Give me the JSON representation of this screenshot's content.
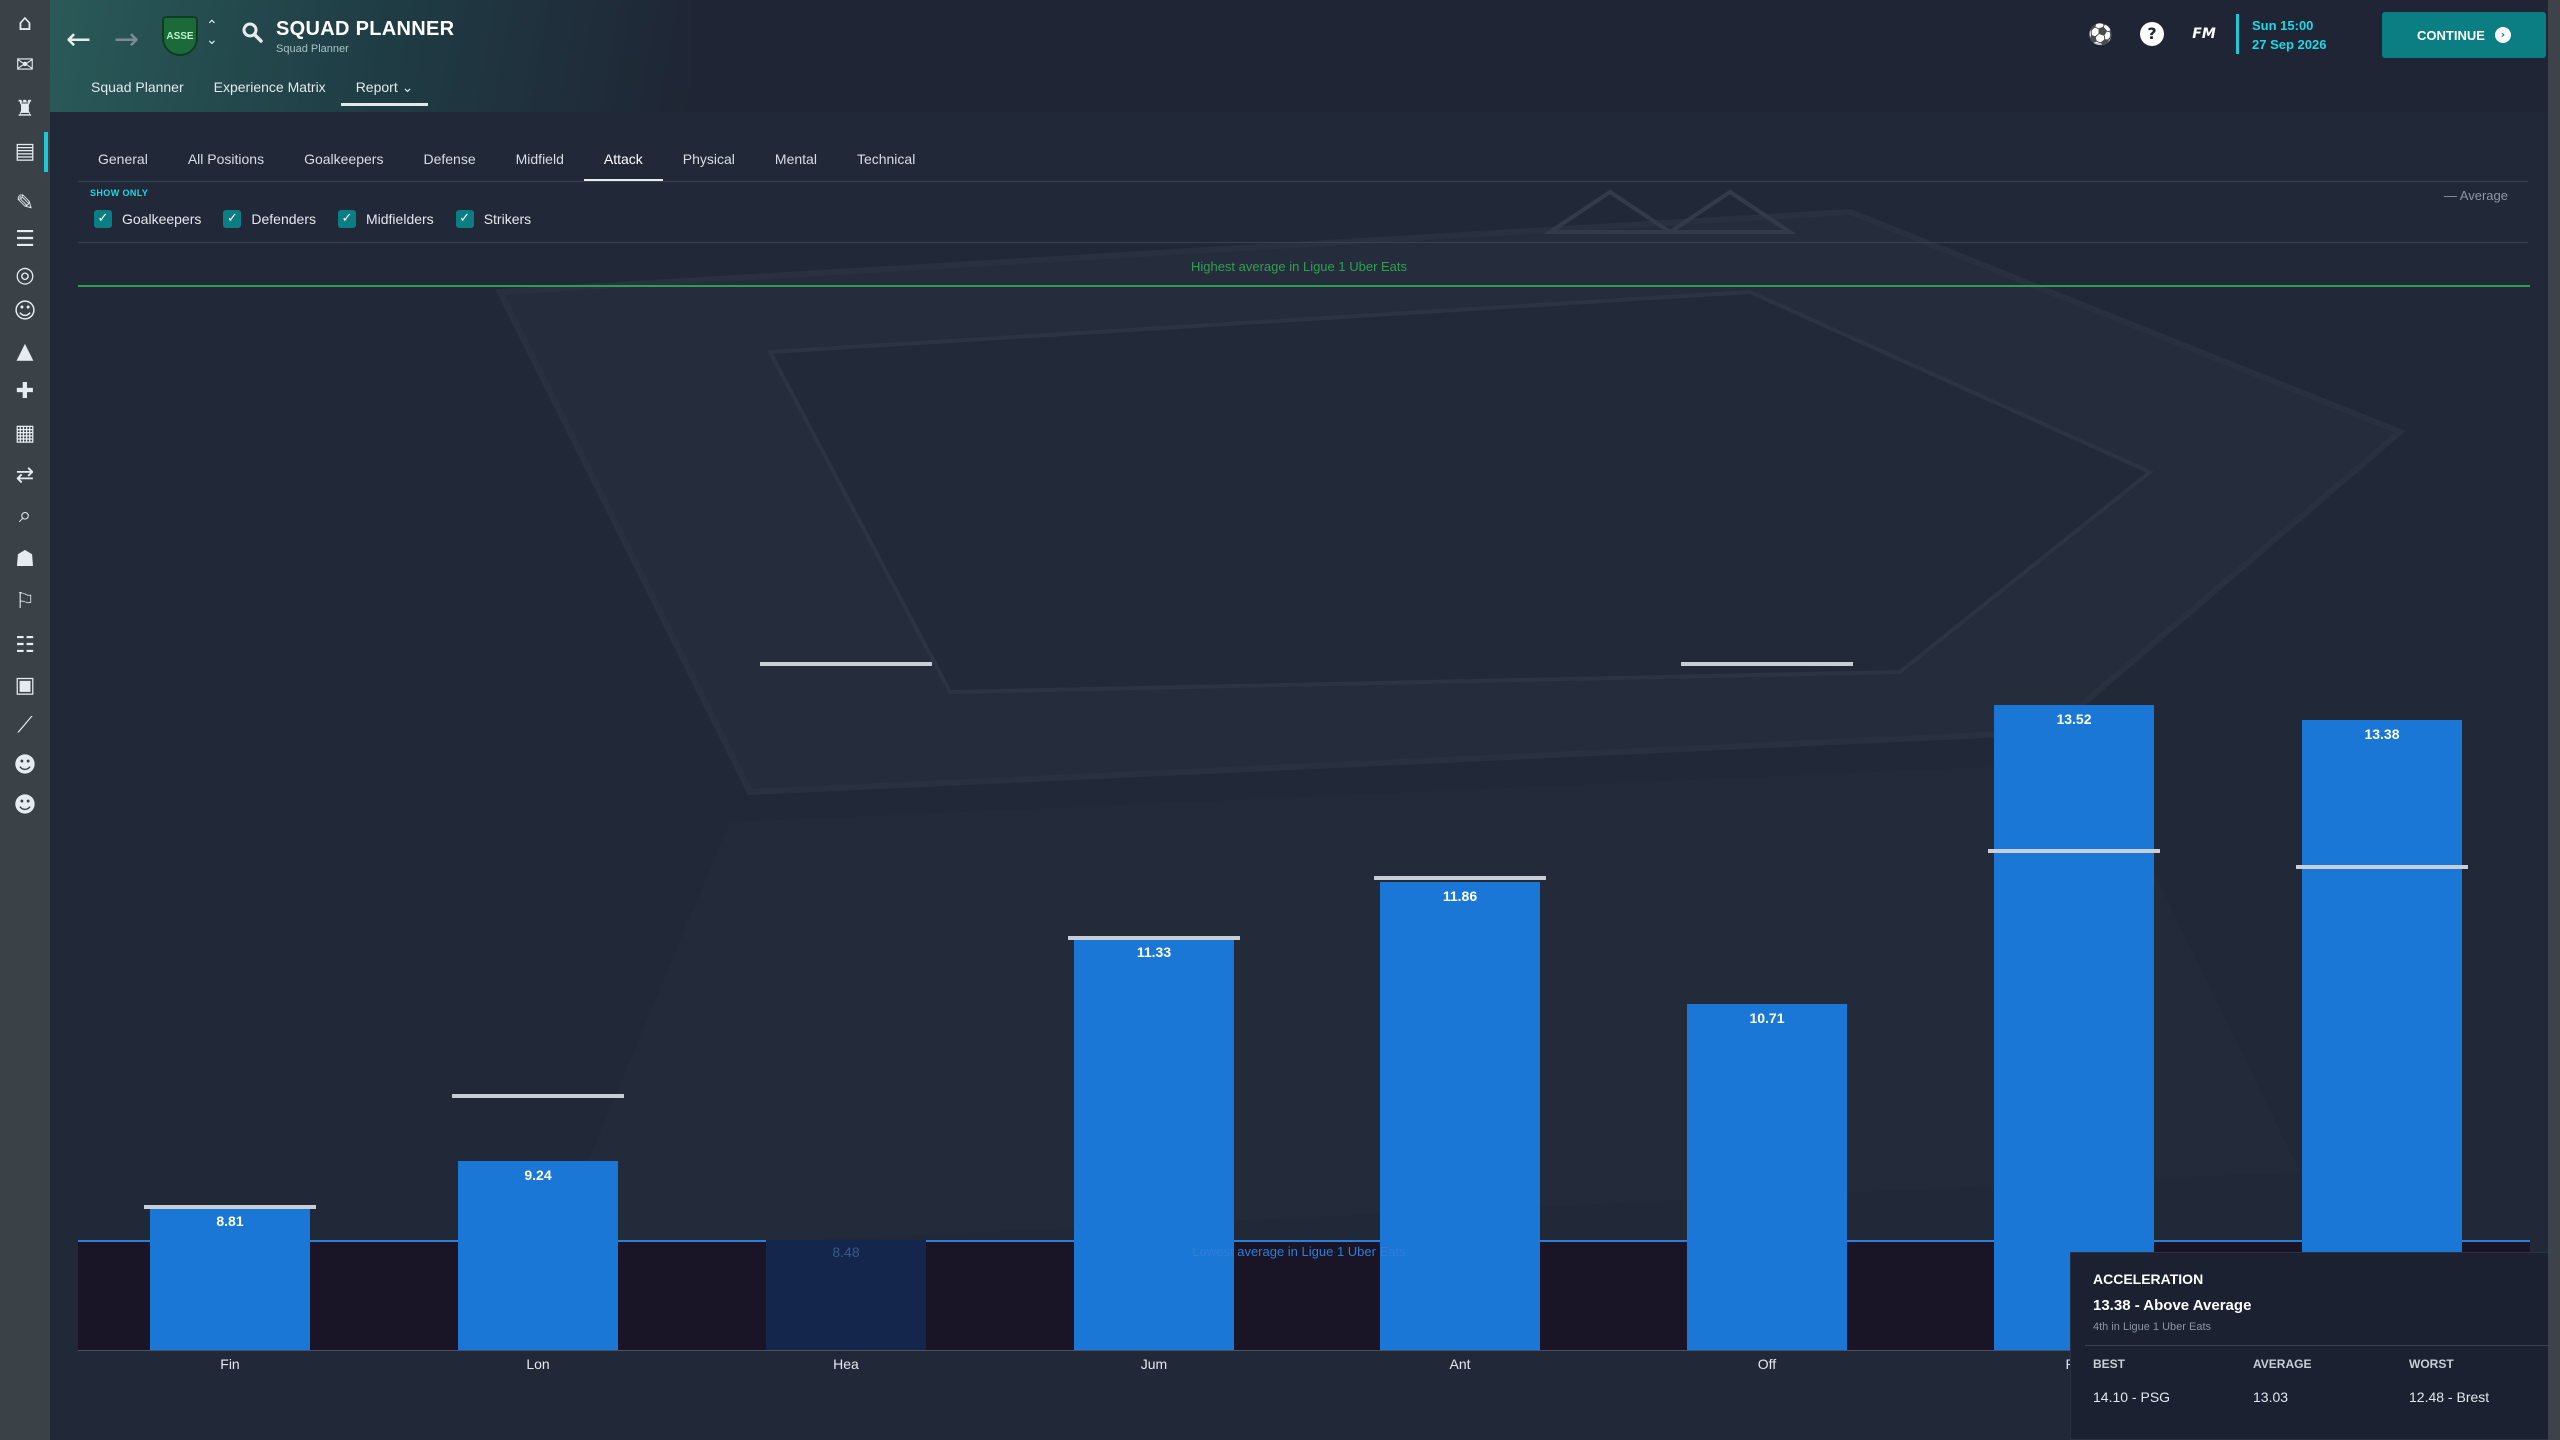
{
  "header": {
    "title": "SQUAD PLANNER",
    "subtitle": "Squad Planner",
    "subnav": [
      "Squad Planner",
      "Experience Matrix",
      "Report ⌄"
    ],
    "date_line1": "Sun 15:00",
    "date_line2": "27 Sep 2026",
    "fm_logo": "FM",
    "continue_label": "CONTINUE",
    "club_badge": "ASSE"
  },
  "tabs": [
    "General",
    "All Positions",
    "Goalkeepers",
    "Defense",
    "Midfield",
    "Attack",
    "Physical",
    "Mental",
    "Technical"
  ],
  "active_tab": "Attack",
  "filters": {
    "label": "SHOW ONLY",
    "items": [
      "Goalkeepers",
      "Defenders",
      "Midfielders",
      "Strikers"
    ],
    "legend_average": "— Average"
  },
  "chart_data": {
    "type": "bar",
    "categories": [
      "Fin",
      "Lon",
      "Hea",
      "Jum",
      "Ant",
      "Off",
      "Pa",
      ""
    ],
    "values": [
      8.81,
      9.24,
      8.48,
      11.33,
      11.86,
      10.71,
      13.52,
      13.38
    ],
    "value_labels": [
      "8.81",
      "9.24",
      "8.48",
      "11.33",
      "11.86",
      "10.71",
      "13.52",
      "13.38"
    ],
    "averages": [
      8.81,
      9.85,
      13.9,
      11.33,
      11.9,
      13.9,
      12.15,
      12.0
    ],
    "highest_label": "Highest average in Ligue 1 Uber Eats",
    "lowest_label": "Lowest average in Ligue 1 Uber Eats",
    "colors": {
      "bar": "#1a77d6",
      "below_bar": "#14264c",
      "highest": "#2e9d54",
      "lowest": "#2f7dd6",
      "average": "#c8ced6"
    }
  },
  "tooltip": {
    "title": "ACCELERATION",
    "value": "13.38 - Above Average",
    "rank": "4th in Ligue 1 Uber Eats",
    "best_label": "BEST",
    "best_value": "14.10 - PSG",
    "average_label": "AVERAGE",
    "average_value": "13.03",
    "worst_label": "WORST",
    "worst_value": "12.48 - Brest"
  }
}
